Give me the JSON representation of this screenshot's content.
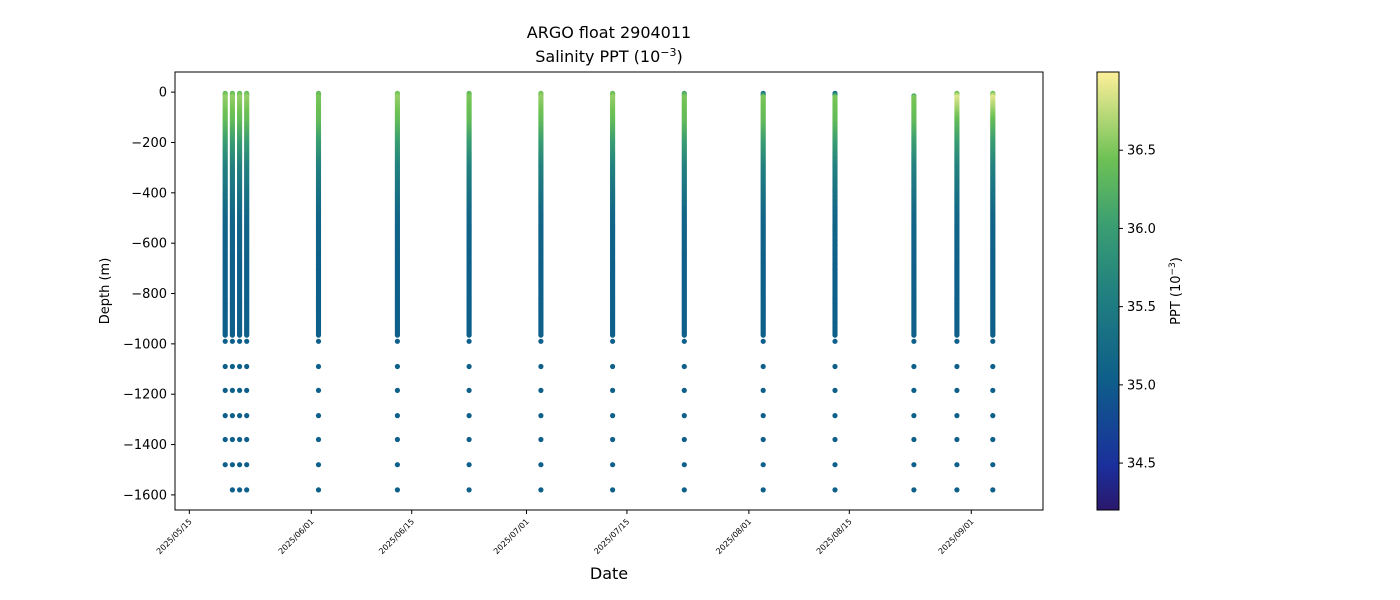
{
  "chart_data": {
    "type": "scatter",
    "title": "ARGO float 2904011",
    "subtitle_text": "Salinity PPT (10",
    "subtitle_exp": "−3",
    "subtitle_close": ")",
    "xlabel": "Date",
    "ylabel": "Depth (m)",
    "colorbar_label_text": "PPT (10",
    "colorbar_label_exp": "−3",
    "colorbar_label_close": ")",
    "colormap": "haline",
    "clim": [
      34.2,
      37.0
    ],
    "colorbar_ticks": [
      34.5,
      35.0,
      35.5,
      36.0,
      36.5
    ],
    "colorbar_tick_labels": [
      "34.5",
      "35.0",
      "35.5",
      "36.0",
      "36.5"
    ],
    "xlim": [
      "2025-05-13",
      "2025-09-11"
    ],
    "ylim": [
      -1660,
      80
    ],
    "x_ticks": [
      "2025-05-15",
      "2025-06-01",
      "2025-06-15",
      "2025-07-01",
      "2025-07-15",
      "2025-08-01",
      "2025-08-15",
      "2025-09-01"
    ],
    "x_tick_labels": [
      "2025/05/15",
      "2025/06/01",
      "2025/06/15",
      "2025/07/01",
      "2025/07/15",
      "2025/08/01",
      "2025/08/15",
      "2025/09/01"
    ],
    "y_ticks": [
      0,
      -200,
      -400,
      -600,
      -800,
      -1000,
      -1200,
      -1400,
      -1600
    ],
    "y_tick_labels": [
      "0",
      "−200",
      "−400",
      "−600",
      "−800",
      "−1000",
      "−1200",
      "−1400",
      "−1600"
    ],
    "grid": false,
    "profiles": [
      {
        "date": "2025-05-20",
        "shallowest_depth": -5,
        "deepest_depth": -1480,
        "surface_salinity": 36.3,
        "subsurface_max": 36.6
      },
      {
        "date": "2025-05-21",
        "shallowest_depth": -5,
        "deepest_depth": -1580,
        "surface_salinity": 36.3,
        "subsurface_max": 36.6
      },
      {
        "date": "2025-05-22",
        "shallowest_depth": -5,
        "deepest_depth": -1580,
        "surface_salinity": 36.3,
        "subsurface_max": 36.6
      },
      {
        "date": "2025-05-23",
        "shallowest_depth": -5,
        "deepest_depth": -1580,
        "surface_salinity": 36.3,
        "subsurface_max": 36.6
      },
      {
        "date": "2025-06-02",
        "shallowest_depth": -5,
        "deepest_depth": -1580,
        "surface_salinity": 36.3,
        "subsurface_max": 36.5
      },
      {
        "date": "2025-06-13",
        "shallowest_depth": -5,
        "deepest_depth": -1580,
        "surface_salinity": 36.4,
        "subsurface_max": 36.6
      },
      {
        "date": "2025-06-23",
        "shallowest_depth": -5,
        "deepest_depth": -1580,
        "surface_salinity": 36.3,
        "subsurface_max": 36.5
      },
      {
        "date": "2025-07-03",
        "shallowest_depth": -5,
        "deepest_depth": -1580,
        "surface_salinity": 36.4,
        "subsurface_max": 36.6
      },
      {
        "date": "2025-07-13",
        "shallowest_depth": -5,
        "deepest_depth": -1580,
        "surface_salinity": 36.3,
        "subsurface_max": 36.6
      },
      {
        "date": "2025-07-23",
        "shallowest_depth": -5,
        "deepest_depth": -1580,
        "surface_salinity": 36.0,
        "subsurface_max": 36.5
      },
      {
        "date": "2025-08-03",
        "shallowest_depth": -5,
        "deepest_depth": -1580,
        "surface_salinity": 35.0,
        "subsurface_max": 36.5
      },
      {
        "date": "2025-08-13",
        "shallowest_depth": -5,
        "deepest_depth": -1580,
        "surface_salinity": 34.9,
        "subsurface_max": 36.5
      },
      {
        "date": "2025-08-24",
        "shallowest_depth": -15,
        "deepest_depth": -1580,
        "surface_salinity": 35.2,
        "subsurface_max": 36.5
      },
      {
        "date": "2025-08-30",
        "shallowest_depth": -5,
        "deepest_depth": -1580,
        "surface_salinity": 36.3,
        "subsurface_max": 36.9
      },
      {
        "date": "2025-09-04",
        "shallowest_depth": -5,
        "deepest_depth": -1580,
        "surface_salinity": 36.3,
        "subsurface_max": 36.9
      }
    ],
    "sparse_depths": [
      -990,
      -1090,
      -1185,
      -1285,
      -1380,
      -1480,
      -1580
    ],
    "deep_salinity": 35.05
  }
}
